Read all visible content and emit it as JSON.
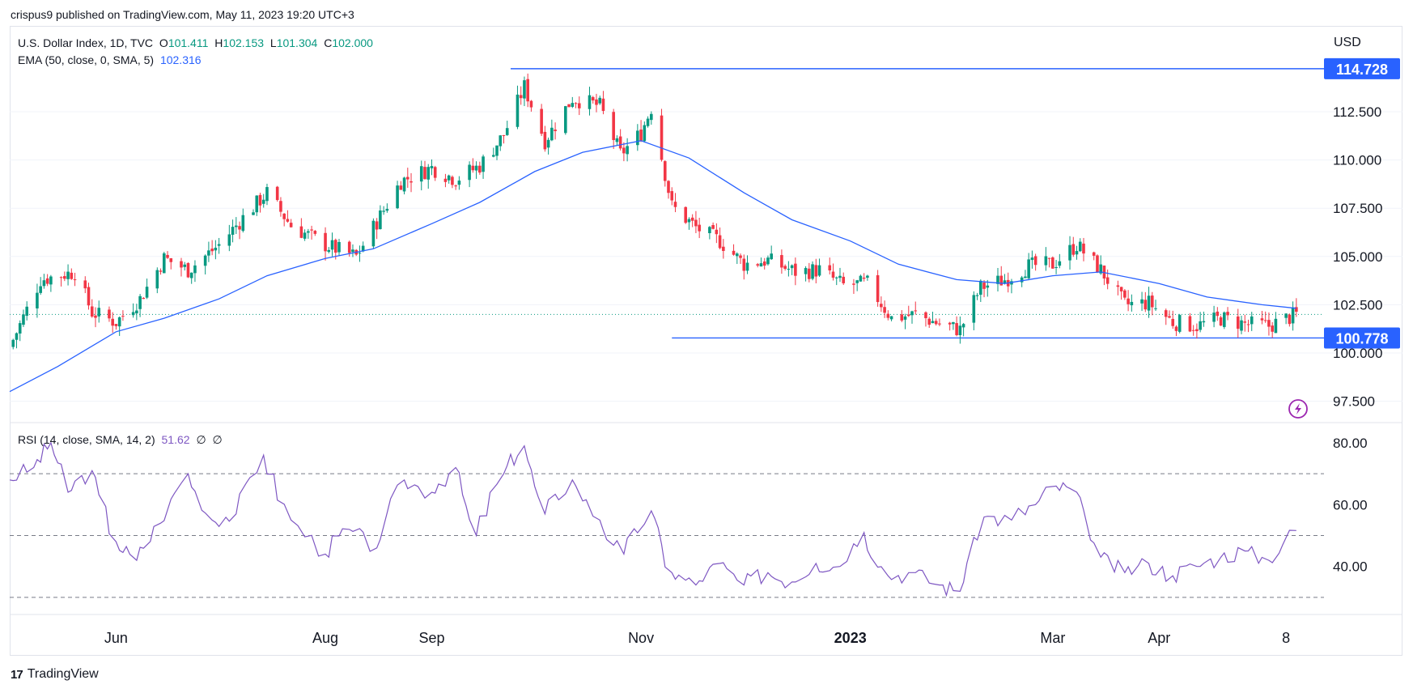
{
  "header": {
    "publisher": "crispus9 published on TradingView.com, May 11, 2023 19:20 UTC+3"
  },
  "legend": {
    "symbol": "U.S. Dollar Index, 1D, TVC",
    "o_label": "O",
    "o_value": "101.411",
    "h_label": "H",
    "h_value": "102.153",
    "l_label": "L",
    "l_value": "101.304",
    "c_label": "C",
    "c_value": "102.000",
    "ema_label": "EMA (50, close, 0, SMA, 5)",
    "ema_value": "102.316",
    "rsi_label": "RSI (14, close, SMA, 14, 2)",
    "rsi_value": "51.62",
    "rsi_extra1": "∅",
    "rsi_extra2": "∅"
  },
  "currency": "USD",
  "footer": {
    "brand": "TradingView",
    "logo_mark": "17"
  },
  "colors": {
    "up": "#089981",
    "down": "#f23645",
    "ema": "#2962ff",
    "rsi": "#7e57c2",
    "level": "#2962ff",
    "grid": "#f0f3fa"
  },
  "chart_data": [
    {
      "type": "candlestick",
      "title": "U.S. Dollar Index, 1D, TVC",
      "ylim": [
        96.5,
        115.5
      ],
      "y_ticks": [
        "97.500",
        "100.000",
        "102.500",
        "105.000",
        "107.500",
        "110.000",
        "112.500"
      ],
      "x_ticks": [
        "Jun",
        "Aug",
        "Sep",
        "Nov",
        "2023",
        "Mar",
        "Apr",
        "8"
      ],
      "levels": [
        {
          "label": "114.728",
          "value": 114.728
        },
        {
          "label": "100.778",
          "value": 100.778
        }
      ],
      "last_close_line": 102.0,
      "series": [
        {
          "name": "Price (approx. close path)",
          "points": [
            [
              "2022-05-01",
              100.3
            ],
            [
              "2022-05-10",
              103.8
            ],
            [
              "2022-05-20",
              104.2
            ],
            [
              "2022-05-25",
              102.1
            ],
            [
              "2022-06-01",
              101.6
            ],
            [
              "2022-06-08",
              102.8
            ],
            [
              "2022-06-15",
              104.9
            ],
            [
              "2022-06-22",
              104.3
            ],
            [
              "2022-07-01",
              105.6
            ],
            [
              "2022-07-08",
              107.0
            ],
            [
              "2022-07-15",
              108.3
            ],
            [
              "2022-07-22",
              106.6
            ],
            [
              "2022-08-01",
              105.6
            ],
            [
              "2022-08-10",
              105.0
            ],
            [
              "2022-08-15",
              106.5
            ],
            [
              "2022-08-23",
              108.9
            ],
            [
              "2022-09-01",
              109.6
            ],
            [
              "2022-09-08",
              109.0
            ],
            [
              "2022-09-15",
              109.7
            ],
            [
              "2022-09-22",
              111.3
            ],
            [
              "2022-09-28",
              113.8
            ],
            [
              "2022-10-04",
              111.0
            ],
            [
              "2022-10-12",
              113.2
            ],
            [
              "2022-10-20",
              112.8
            ],
            [
              "2022-10-26",
              110.3
            ],
            [
              "2022-11-01",
              111.4
            ],
            [
              "2022-11-04",
              112.7
            ],
            [
              "2022-11-10",
              107.6
            ],
            [
              "2022-11-17",
              106.5
            ],
            [
              "2022-11-24",
              105.8
            ],
            [
              "2022-12-01",
              104.6
            ],
            [
              "2022-12-08",
              104.8
            ],
            [
              "2022-12-16",
              104.2
            ],
            [
              "2022-12-23",
              104.3
            ],
            [
              "2022-12-30",
              103.5
            ],
            [
              "2023-01-06",
              103.6
            ],
            [
              "2023-01-13",
              101.8
            ],
            [
              "2023-01-20",
              102.0
            ],
            [
              "2023-01-27",
              101.5
            ],
            [
              "2023-02-02",
              101.2
            ],
            [
              "2023-02-08",
              103.4
            ],
            [
              "2023-02-15",
              103.8
            ],
            [
              "2023-02-22",
              104.5
            ],
            [
              "2023-03-01",
              104.6
            ],
            [
              "2023-03-08",
              105.6
            ],
            [
              "2023-03-15",
              104.3
            ],
            [
              "2023-03-22",
              102.5
            ],
            [
              "2023-03-29",
              102.6
            ],
            [
              "2023-04-05",
              101.6
            ],
            [
              "2023-04-12",
              101.4
            ],
            [
              "2023-04-19",
              101.8
            ],
            [
              "2023-04-26",
              101.5
            ],
            [
              "2023-05-03",
              101.4
            ],
            [
              "2023-05-11",
              102.0
            ]
          ]
        },
        {
          "name": "EMA (50, close, 0, SMA, 5)",
          "points": [
            [
              "2022-05-01",
              98.0
            ],
            [
              "2022-05-15",
              99.3
            ],
            [
              "2022-06-01",
              101.1
            ],
            [
              "2022-06-15",
              101.8
            ],
            [
              "2022-07-01",
              102.8
            ],
            [
              "2022-07-15",
              104.0
            ],
            [
              "2022-08-01",
              104.9
            ],
            [
              "2022-08-15",
              105.4
            ],
            [
              "2022-09-01",
              106.7
            ],
            [
              "2022-09-15",
              107.8
            ],
            [
              "2022-10-01",
              109.4
            ],
            [
              "2022-10-15",
              110.4
            ],
            [
              "2022-11-01",
              111.0
            ],
            [
              "2022-11-15",
              110.1
            ],
            [
              "2022-12-01",
              108.3
            ],
            [
              "2022-12-15",
              106.9
            ],
            [
              "2023-01-01",
              105.8
            ],
            [
              "2023-01-15",
              104.6
            ],
            [
              "2023-02-01",
              103.8
            ],
            [
              "2023-02-15",
              103.6
            ],
            [
              "2023-03-01",
              104.0
            ],
            [
              "2023-03-15",
              104.2
            ],
            [
              "2023-04-01",
              103.6
            ],
            [
              "2023-04-15",
              102.9
            ],
            [
              "2023-05-01",
              102.5
            ],
            [
              "2023-05-11",
              102.316
            ]
          ]
        }
      ]
    },
    {
      "type": "line",
      "title": "RSI (14, close, SMA, 14, 2)",
      "ylim": [
        25,
        86
      ],
      "y_ticks": [
        "40.00",
        "60.00",
        "80.00"
      ],
      "bands": [
        30,
        50,
        70
      ],
      "series": [
        {
          "name": "RSI",
          "points": [
            [
              "2022-05-01",
              68
            ],
            [
              "2022-05-08",
              72
            ],
            [
              "2022-05-13",
              80
            ],
            [
              "2022-05-18",
              64
            ],
            [
              "2022-05-25",
              71
            ],
            [
              "2022-06-01",
              48
            ],
            [
              "2022-06-07",
              42
            ],
            [
              "2022-06-14",
              54
            ],
            [
              "2022-06-22",
              70
            ],
            [
              "2022-06-29",
              55
            ],
            [
              "2022-07-06",
              57
            ],
            [
              "2022-07-14",
              76
            ],
            [
              "2022-07-22",
              55
            ],
            [
              "2022-08-01",
              44
            ],
            [
              "2022-08-08",
              52
            ],
            [
              "2022-08-16",
              46
            ],
            [
              "2022-08-24",
              68
            ],
            [
              "2022-09-01",
              64
            ],
            [
              "2022-09-08",
              72
            ],
            [
              "2022-09-14",
              50
            ],
            [
              "2022-09-22",
              70
            ],
            [
              "2022-09-28",
              79
            ],
            [
              "2022-10-04",
              57
            ],
            [
              "2022-10-12",
              68
            ],
            [
              "2022-10-20",
              55
            ],
            [
              "2022-10-27",
              44
            ],
            [
              "2022-11-04",
              58
            ],
            [
              "2022-11-10",
              38
            ],
            [
              "2022-11-17",
              34
            ],
            [
              "2022-11-24",
              41
            ],
            [
              "2022-12-01",
              34
            ],
            [
              "2022-12-08",
              38
            ],
            [
              "2022-12-15",
              35
            ],
            [
              "2022-12-22",
              41
            ],
            [
              "2022-12-29",
              40
            ],
            [
              "2023-01-05",
              51
            ],
            [
              "2023-01-12",
              37
            ],
            [
              "2023-01-20",
              38
            ],
            [
              "2023-01-27",
              34
            ],
            [
              "2023-02-02",
              32
            ],
            [
              "2023-02-09",
              56
            ],
            [
              "2023-02-17",
              55
            ],
            [
              "2023-02-24",
              60
            ],
            [
              "2023-03-02",
              66
            ],
            [
              "2023-03-08",
              64
            ],
            [
              "2023-03-15",
              43
            ],
            [
              "2023-03-22",
              38
            ],
            [
              "2023-03-29",
              41
            ],
            [
              "2023-04-05",
              37
            ],
            [
              "2023-04-12",
              40
            ],
            [
              "2023-04-19",
              43
            ],
            [
              "2023-04-26",
              45
            ],
            [
              "2023-05-03",
              42
            ],
            [
              "2023-05-11",
              51.62
            ]
          ]
        }
      ]
    }
  ]
}
